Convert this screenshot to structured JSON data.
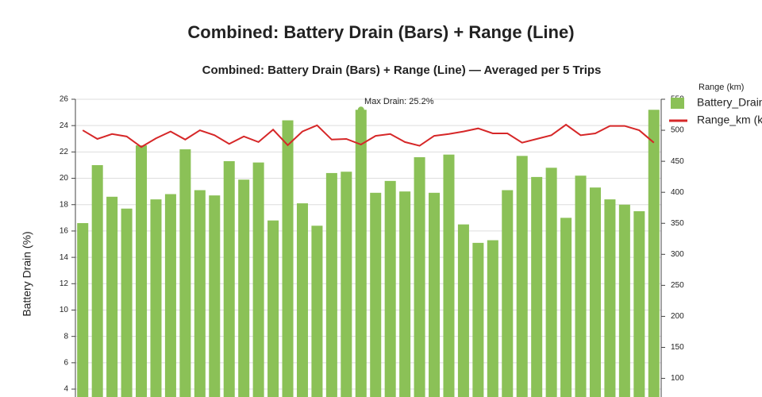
{
  "chart_data": {
    "type": "bar_line",
    "title": "Combined: Battery Drain (Bars) + Range (Line)",
    "subtitle": "Combined: Battery Drain (Bars) + Range (Line) — Averaged per 5 Trips",
    "y_label": "Battery Drain (%)",
    "y2_label": "Range (km)",
    "annotation": "Max Drain: 25.2%",
    "legend": "right",
    "grid": true,
    "ylim": [
      3.4,
      26
    ],
    "yticks": [
      4,
      6,
      8,
      10,
      12,
      14,
      16,
      18,
      20,
      22,
      24,
      26
    ],
    "y2lim": [
      70,
      550
    ],
    "y2ticks": [
      100,
      150,
      200,
      250,
      300,
      350,
      400,
      450,
      500,
      550
    ],
    "series": [
      {
        "name": "Battery_Drain",
        "type": "bar",
        "color": "#8bc157",
        "values": [
          16.6,
          21.0,
          18.6,
          17.7,
          22.5,
          18.4,
          18.8,
          22.2,
          19.1,
          18.7,
          21.3,
          19.9,
          21.2,
          16.8,
          24.4,
          18.1,
          16.4,
          20.4,
          20.5,
          25.2,
          18.9,
          19.8,
          19.0,
          21.6,
          18.9,
          21.8,
          16.5,
          15.1,
          15.3,
          19.1,
          21.7,
          20.1,
          20.8,
          17.0,
          20.2,
          19.3,
          18.4,
          18.0,
          17.5,
          25.2
        ]
      },
      {
        "name": "Range_km (km)",
        "type": "line",
        "axis": "y2",
        "color": "#d62728",
        "values": [
          500,
          486,
          494,
          490,
          473,
          487,
          498,
          485,
          500,
          492,
          478,
          490,
          481,
          501,
          476,
          498,
          508,
          485,
          486,
          477,
          491,
          494,
          481,
          475,
          491,
          494,
          498,
          503,
          495,
          495,
          480,
          486,
          492,
          509,
          492,
          495,
          507,
          507,
          500,
          480
        ]
      }
    ]
  }
}
